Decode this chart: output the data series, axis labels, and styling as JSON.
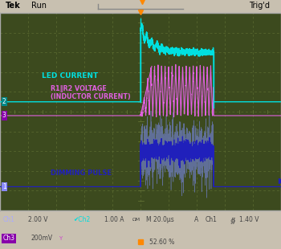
{
  "osc_bg": "#3c4a1e",
  "grid_color": "#6a7a3a",
  "border_color": "#aaaaaa",
  "top_bar_bg": "#e8e0d0",
  "bot_bar_bg": "#e8e0d0",
  "fig_bg": "#c8c0b0",
  "led_color": "#00e0e0",
  "inductor_color": "#e060e0",
  "dimming_color": "#2020bb",
  "dimming_noise_color": "#7080cc",
  "ch1_marker_bg": "#8888ff",
  "ch2_marker_bg": "#008888",
  "ch3_marker_bg": "#8800aa",
  "label_led": "LED CURRENT",
  "label_r1r2_1": "R1‖R2 VOLTAGE",
  "label_r1r2_2": "(INDUCTOR CURRENT)",
  "label_dimming": "DIMMING PULSE",
  "trigger_color": "#ff8800",
  "ch1_text_color": "#aaaaff",
  "ch2_text_color": "#00dddd",
  "ch3_text_color": "#cc44cc",
  "white": "#ffffff",
  "black": "#000000",
  "gray_text": "#444444"
}
